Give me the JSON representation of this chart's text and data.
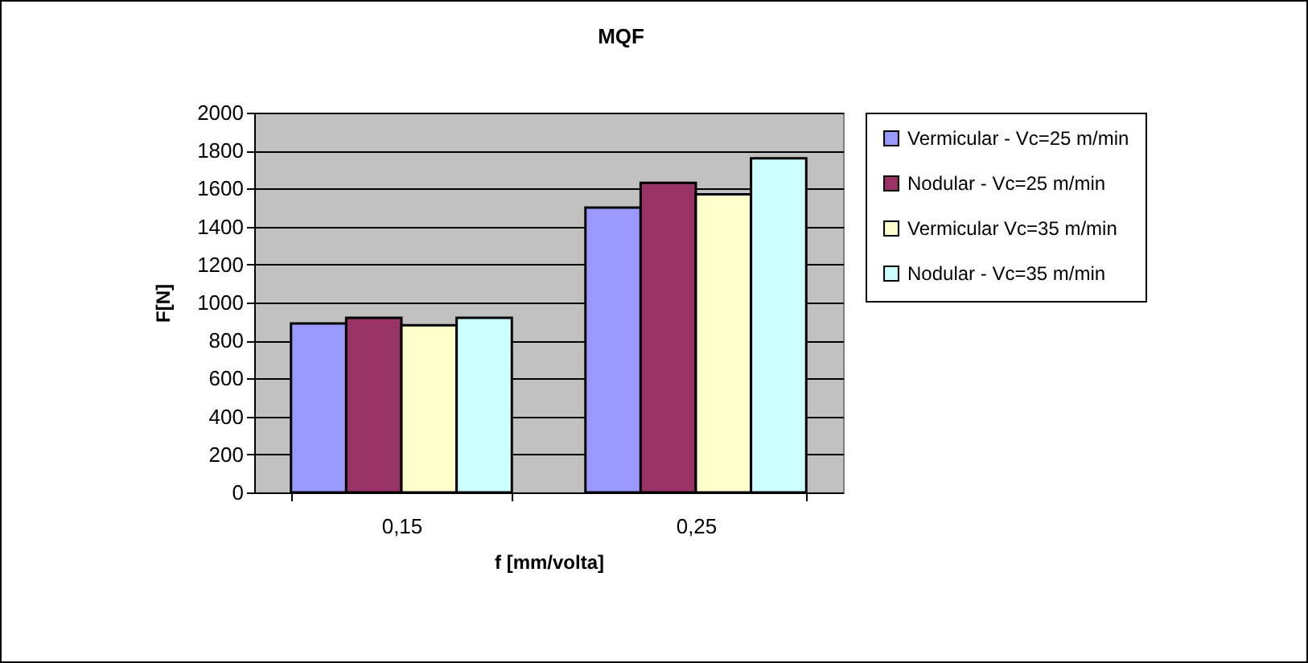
{
  "chart_data": {
    "type": "bar",
    "title": "MQF",
    "xlabel": "f [mm/volta]",
    "ylabel": "F[N]",
    "categories": [
      "0,15",
      "0,25"
    ],
    "series": [
      {
        "name": "Vermicular - Vc=25 m/min",
        "color": "#9999ff",
        "values": [
          890,
          1500
        ]
      },
      {
        "name": "Nodular - Vc=25 m/min",
        "color": "#993366",
        "values": [
          920,
          1630
        ]
      },
      {
        "name": "Vermicular  Vc=35 m/min",
        "color": "#ffffcc",
        "values": [
          880,
          1570
        ]
      },
      {
        "name": "Nodular - Vc=35 m/min",
        "color": "#ccffff",
        "values": [
          920,
          1760
        ]
      }
    ],
    "ylim": [
      0,
      2000
    ],
    "yticks": [
      0,
      200,
      400,
      600,
      800,
      1000,
      1200,
      1400,
      1600,
      1800,
      2000
    ],
    "grid": "y",
    "legend": "right"
  }
}
